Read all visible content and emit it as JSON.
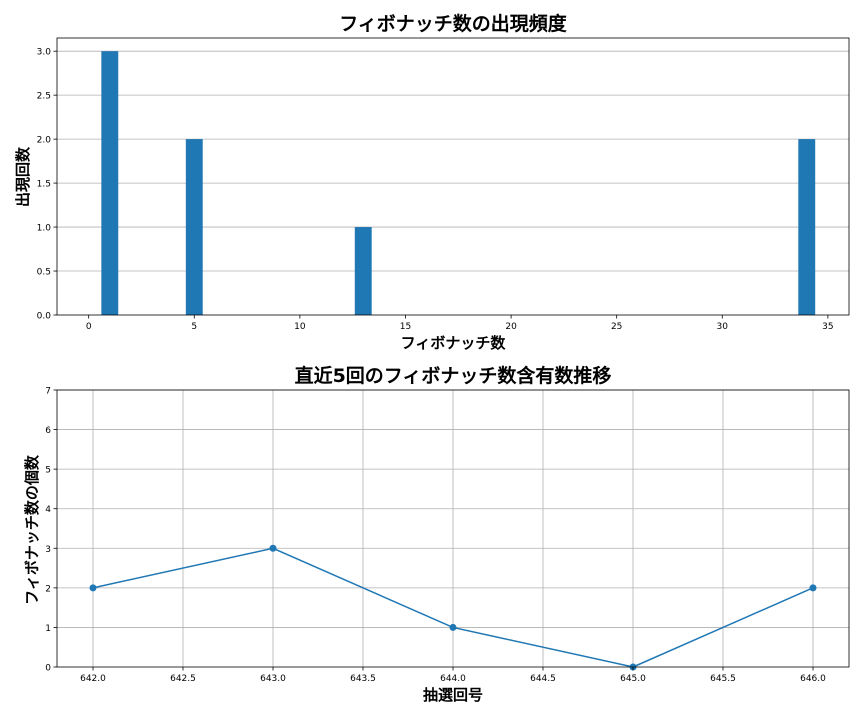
{
  "chart_data": [
    {
      "type": "bar",
      "title": "フィボナッチ数の出現頻度",
      "xlabel": "フィボナッチ数",
      "ylabel": "出現回数",
      "x": [
        1,
        5,
        13,
        34
      ],
      "values": [
        3,
        2,
        1,
        2
      ],
      "bar_width": 0.8,
      "xlim": [
        -1.5,
        36
      ],
      "ylim": [
        0,
        3.15
      ],
      "xticks": [
        0,
        5,
        10,
        15,
        20,
        25,
        30,
        35
      ],
      "yticks": [
        0.0,
        0.5,
        1.0,
        1.5,
        2.0,
        2.5,
        3.0
      ],
      "xtick_labels": [
        "0",
        "5",
        "10",
        "15",
        "20",
        "25",
        "30",
        "35"
      ],
      "ytick_labels": [
        "0.0",
        "0.5",
        "1.0",
        "1.5",
        "2.0",
        "2.5",
        "3.0"
      ],
      "grid": "y",
      "color": "#1f77b4"
    },
    {
      "type": "line",
      "title": "直近5回のフィボナッチ数含有数推移",
      "xlabel": "抽選回号",
      "ylabel": "フィボナッチ数の個数",
      "x": [
        642,
        643,
        644,
        645,
        646
      ],
      "values": [
        2,
        3,
        1,
        0,
        2
      ],
      "xlim": [
        641.8,
        646.2
      ],
      "ylim": [
        0,
        7
      ],
      "xticks": [
        642.0,
        642.5,
        643.0,
        643.5,
        644.0,
        644.5,
        645.0,
        645.5,
        646.0
      ],
      "yticks": [
        0,
        1,
        2,
        3,
        4,
        5,
        6,
        7
      ],
      "xtick_labels": [
        "642.0",
        "642.5",
        "643.0",
        "643.5",
        "644.0",
        "644.5",
        "645.0",
        "645.5",
        "646.0"
      ],
      "ytick_labels": [
        "0",
        "1",
        "2",
        "3",
        "4",
        "5",
        "6",
        "7"
      ],
      "grid": "both",
      "marker": "circle",
      "color": "#1f77b4"
    }
  ]
}
